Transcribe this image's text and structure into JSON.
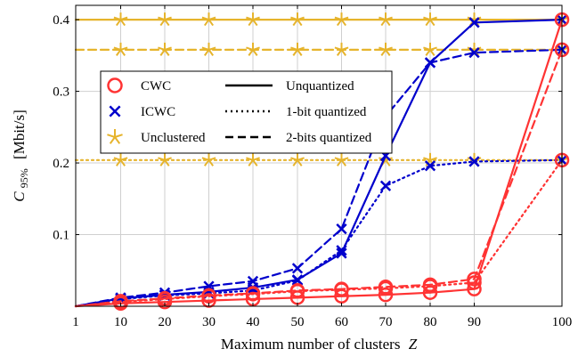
{
  "chart_data": {
    "type": "line",
    "xlabel": "Maximum number of clusters",
    "xlabel_var": "Z",
    "ylabel_main": "C",
    "ylabel_sub": "95%",
    "ylabel_unit": "[Mbit/s]",
    "x_ticks": [
      1,
      10,
      20,
      30,
      40,
      50,
      60,
      70,
      80,
      90,
      100
    ],
    "y_ticks": [
      0.1,
      0.2,
      0.3,
      0.4
    ],
    "y_tick_labels": [
      "0.1",
      "0.2",
      "0.3",
      "0.4"
    ],
    "ylim": [
      0,
      0.42
    ],
    "grid": true,
    "legend_position": "top-left",
    "legend": {
      "schemes": [
        {
          "label": "CWC",
          "marker": "circle",
          "color": "#ff3333"
        },
        {
          "label": "ICWC",
          "marker": "x",
          "color": "#0000cc"
        },
        {
          "label": "Unclustered",
          "marker": "star",
          "color": "#e6b42c"
        }
      ],
      "styles": [
        {
          "label": "Unquantized",
          "dash": "solid"
        },
        {
          "label": "1-bit quantized",
          "dash": "dotted"
        },
        {
          "label": "2-bits quantized",
          "dash": "dashed"
        }
      ]
    },
    "series": [
      {
        "scheme": "Unclustered",
        "style": "solid",
        "color": "#e6b42c",
        "marker": "star",
        "x": [
          1,
          10,
          20,
          30,
          40,
          50,
          60,
          70,
          80,
          90,
          100
        ],
        "y": [
          0.4,
          0.4,
          0.4,
          0.4,
          0.4,
          0.4,
          0.4,
          0.4,
          0.4,
          0.4,
          0.4
        ]
      },
      {
        "scheme": "Unclustered",
        "style": "dashed",
        "color": "#e6b42c",
        "marker": "star",
        "x": [
          1,
          10,
          20,
          30,
          40,
          50,
          60,
          70,
          80,
          90,
          100
        ],
        "y": [
          0.358,
          0.358,
          0.358,
          0.358,
          0.358,
          0.358,
          0.358,
          0.358,
          0.358,
          0.358,
          0.358
        ]
      },
      {
        "scheme": "Unclustered",
        "style": "dotted",
        "color": "#e6b42c",
        "marker": "star",
        "x": [
          1,
          10,
          20,
          30,
          40,
          50,
          60,
          70,
          80,
          90,
          100
        ],
        "y": [
          0.204,
          0.204,
          0.204,
          0.204,
          0.204,
          0.204,
          0.204,
          0.204,
          0.204,
          0.204,
          0.204
        ]
      },
      {
        "scheme": "ICWC",
        "style": "solid",
        "color": "#0000cc",
        "marker": "x",
        "x": [
          1,
          10,
          20,
          30,
          40,
          50,
          60,
          70,
          80,
          90,
          100
        ],
        "y": [
          0.0,
          0.011,
          0.016,
          0.02,
          0.026,
          0.037,
          0.074,
          0.21,
          0.34,
          0.396,
          0.4
        ]
      },
      {
        "scheme": "ICWC",
        "style": "dotted",
        "color": "#0000cc",
        "marker": "x",
        "x": [
          1,
          10,
          20,
          30,
          40,
          50,
          60,
          70,
          80,
          90,
          100
        ],
        "y": [
          0.0,
          0.01,
          0.015,
          0.018,
          0.022,
          0.036,
          0.078,
          0.168,
          0.196,
          0.202,
          0.204
        ]
      },
      {
        "scheme": "ICWC",
        "style": "dashed",
        "color": "#0000cc",
        "marker": "x",
        "x": [
          1,
          10,
          20,
          30,
          40,
          50,
          60,
          70,
          80,
          90,
          100
        ],
        "y": [
          0.0,
          0.012,
          0.019,
          0.028,
          0.035,
          0.053,
          0.108,
          0.265,
          0.34,
          0.354,
          0.358
        ]
      },
      {
        "scheme": "CWC",
        "style": "solid",
        "color": "#ff3333",
        "marker": "circle",
        "x": [
          1,
          10,
          20,
          30,
          40,
          50,
          60,
          70,
          80,
          90,
          100
        ],
        "y": [
          0.0,
          0.004,
          0.006,
          0.008,
          0.01,
          0.012,
          0.014,
          0.016,
          0.019,
          0.024,
          0.4
        ]
      },
      {
        "scheme": "CWC",
        "style": "dotted",
        "color": "#ff3333",
        "marker": "circle",
        "x": [
          1,
          10,
          20,
          30,
          40,
          50,
          60,
          70,
          80,
          90,
          100
        ],
        "y": [
          0.0,
          0.006,
          0.01,
          0.014,
          0.017,
          0.021,
          0.023,
          0.025,
          0.028,
          0.033,
          0.204
        ]
      },
      {
        "scheme": "CWC",
        "style": "dashed",
        "color": "#ff3333",
        "marker": "circle",
        "x": [
          1,
          10,
          20,
          30,
          40,
          50,
          60,
          70,
          80,
          90,
          100
        ],
        "y": [
          0.0,
          0.007,
          0.011,
          0.015,
          0.018,
          0.022,
          0.024,
          0.027,
          0.03,
          0.038,
          0.358
        ]
      }
    ]
  }
}
